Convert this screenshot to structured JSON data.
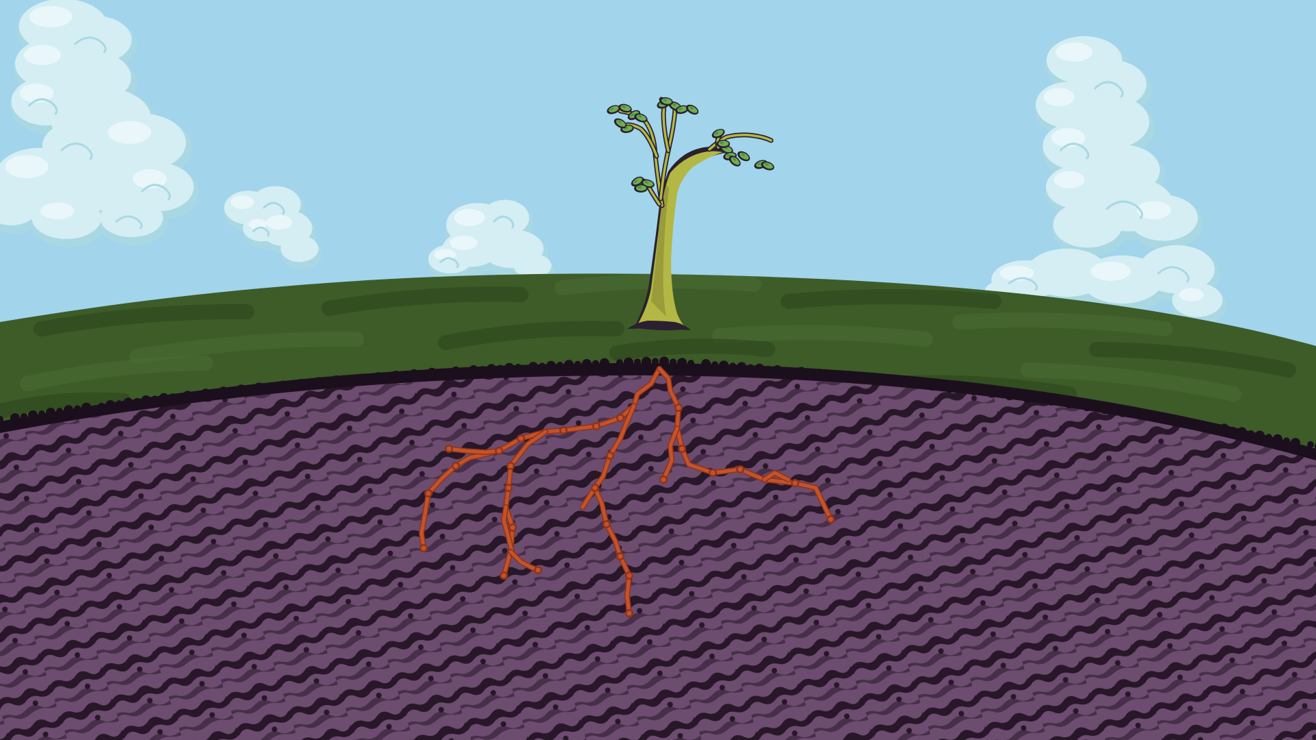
{
  "scene": {
    "name": "seedling-on-hill",
    "colors": {
      "sky": "#a2d4ec",
      "cloud_fill": "#d4eef4",
      "cloud_shade": "#a9d8e3",
      "cloud_highlight": "#eef9fb",
      "grass": "#3d5c28",
      "grass_dark": "#2b4419",
      "grass_light": "#4d6d33",
      "soil_edge": "#1c0f1d",
      "soil": "#6c4c6f",
      "soil_stripe": "#281629",
      "trunk": "#b3b845",
      "trunk_shadow": "#7a7a2a",
      "outline": "#2a2030",
      "leaf": "#6fae52",
      "leaf_dark": "#3a6e30",
      "root": "#c4532a",
      "root_dark": "#8f3318"
    },
    "elements": {
      "clouds": [
        "cloud-top-left",
        "cloud-small-left",
        "cloud-center",
        "cloud-right"
      ],
      "tree": "sapling",
      "roots": "root-system",
      "ground": [
        "grass-hill",
        "underground-soil"
      ]
    }
  }
}
